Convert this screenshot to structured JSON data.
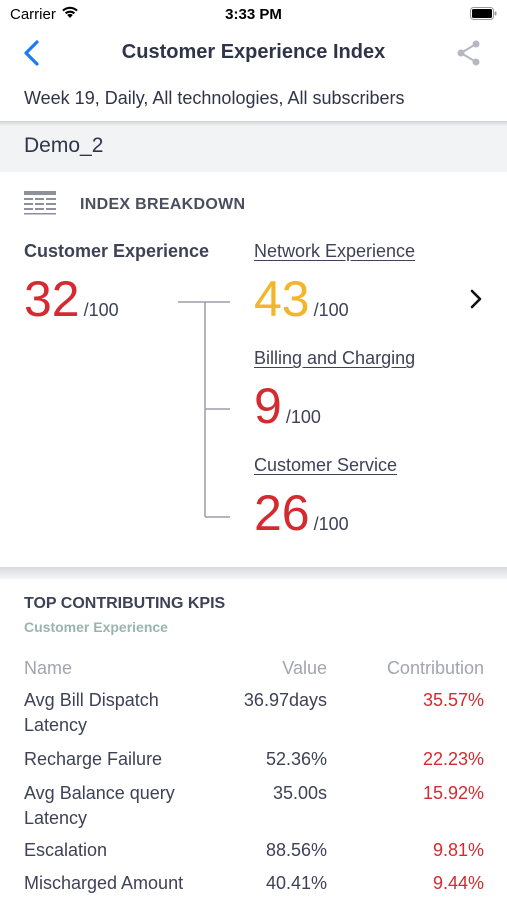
{
  "status_bar": {
    "carrier": "Carrier",
    "time": "3:33 PM"
  },
  "nav": {
    "title": "Customer Experience Index",
    "back_icon": "chevron-left-icon",
    "share_icon": "share-icon"
  },
  "subtitle": "Week 19, Daily, All technologies, All subscribers",
  "filter": "Demo_2",
  "breakdown": {
    "title": "INDEX BREAKDOWN",
    "customer_experience": {
      "label": "Customer Experience",
      "score": "32",
      "denom": "/100"
    },
    "network": {
      "label": "Network Experience",
      "score": "43",
      "denom": "/100"
    },
    "billing": {
      "label": "Billing and Charging",
      "score": "9",
      "denom": "/100"
    },
    "service": {
      "label": "Customer Service",
      "score": "26",
      "denom": "/100"
    }
  },
  "kpis": {
    "title": "TOP CONTRIBUTING KPIS",
    "subtitle": "Customer Experience",
    "headers": {
      "name": "Name",
      "value": "Value",
      "contribution": "Contribution"
    },
    "rows": [
      {
        "name": "Avg Bill Dispatch Latency",
        "value": "36.97days",
        "contribution": "35.57%"
      },
      {
        "name": "Recharge Failure",
        "value": "52.36%",
        "contribution": "22.23%"
      },
      {
        "name": "Avg Balance query Latency",
        "value": "35.00s",
        "contribution": "15.92%"
      },
      {
        "name": "Escalation",
        "value": "88.56%",
        "contribution": "9.81%"
      },
      {
        "name": "Mischarged Amount",
        "value": "40.41%",
        "contribution": "9.44%"
      }
    ]
  },
  "colors": {
    "accent": "#1a7cf5",
    "bad": "#d42a30",
    "warn": "#f3b52a",
    "text": "#2f3548"
  }
}
